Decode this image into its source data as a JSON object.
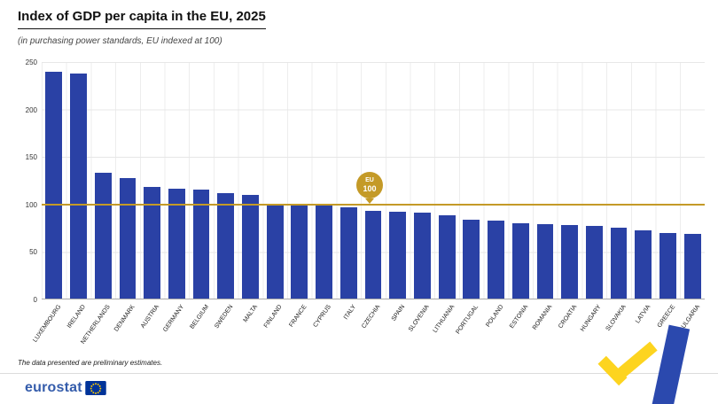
{
  "header": {
    "title": "Index of GDP per capita in the EU, 2025",
    "subtitle": "(in purchasing power standards, EU indexed at 100)"
  },
  "chart_data": {
    "type": "bar",
    "title": "Index of GDP per capita in the EU, 2025",
    "subtitle": "(in purchasing power standards, EU indexed at 100)",
    "categories": [
      "LUXEMBOURG",
      "IRELAND",
      "NETHERLANDS",
      "DENMARK",
      "AUSTRIA",
      "GERMANY",
      "BELGIUM",
      "SWEDEN",
      "MALTA",
      "FINLAND",
      "FRANCE",
      "CYPRUS",
      "ITALY",
      "CZECHIA",
      "SPAIN",
      "SLOVENIA",
      "LITHUANIA",
      "PORTUGAL",
      "POLAND",
      "ESTONIA",
      "ROMANIA",
      "CROATIA",
      "HUNGARY",
      "SLOVAKIA",
      "LATVIA",
      "GREECE",
      "BULGARIA"
    ],
    "values": [
      240,
      238,
      133,
      127,
      118,
      116,
      115,
      111,
      110,
      99,
      98,
      98,
      96,
      93,
      92,
      91,
      88,
      83,
      82,
      80,
      79,
      78,
      77,
      75,
      72,
      69,
      68
    ],
    "xlabel": "",
    "ylabel": "",
    "ylim": [
      0,
      250
    ],
    "yticks": [
      0,
      50,
      100,
      150,
      200,
      250
    ],
    "grid": true,
    "legend": "none",
    "bar_color": "#2a41a5",
    "reference_line": {
      "value": 100,
      "label_line1": "EU",
      "label_line2": "100",
      "color": "#c49a27"
    }
  },
  "footer": {
    "note": "The data presented are preliminary estimates.",
    "logo_text": "eurostat"
  }
}
